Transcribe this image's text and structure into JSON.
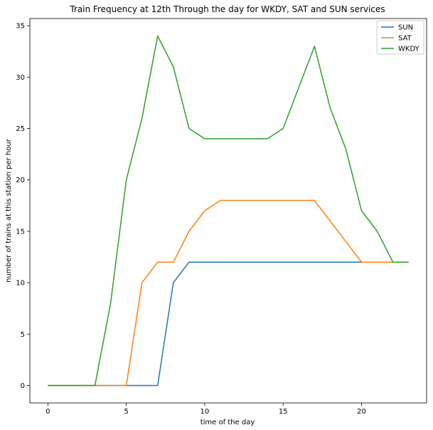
{
  "chart_data": {
    "type": "line",
    "title": "Train Frequency at 12th Through the day for WKDY, SAT and SUN services",
    "xlabel": "time of the day",
    "ylabel": "number of trains at this station per hour",
    "xlim": [
      -1.15,
      24.15
    ],
    "ylim": [
      -1.7,
      35.7
    ],
    "xticks": [
      0,
      5,
      10,
      15,
      20
    ],
    "yticks": [
      0,
      5,
      10,
      15,
      20,
      25,
      30,
      35
    ],
    "grid": false,
    "legend_position": "top-right",
    "x": [
      0,
      1,
      2,
      3,
      4,
      5,
      6,
      7,
      8,
      9,
      10,
      11,
      12,
      13,
      14,
      15,
      16,
      17,
      18,
      19,
      20,
      21,
      22,
      23
    ],
    "series": [
      {
        "name": "SUN",
        "color": "#1f77b4",
        "values": [
          0,
          0,
          0,
          0,
          0,
          0,
          0,
          0,
          10,
          12,
          12,
          12,
          12,
          12,
          12,
          12,
          12,
          12,
          12,
          12,
          12,
          12,
          12,
          12
        ]
      },
      {
        "name": "SAT",
        "color": "#ff7f0e",
        "values": [
          0,
          0,
          0,
          0,
          0,
          0,
          10,
          12,
          12,
          15,
          17,
          18,
          18,
          18,
          18,
          18,
          18,
          18,
          16,
          14,
          12,
          12,
          12,
          12
        ]
      },
      {
        "name": "WKDY",
        "color": "#2ca02c",
        "values": [
          0,
          0,
          0,
          0,
          8,
          20,
          26,
          34,
          31,
          25,
          24,
          24,
          24,
          24,
          24,
          25,
          29,
          33,
          27,
          23,
          17,
          15,
          12,
          12
        ]
      }
    ]
  }
}
